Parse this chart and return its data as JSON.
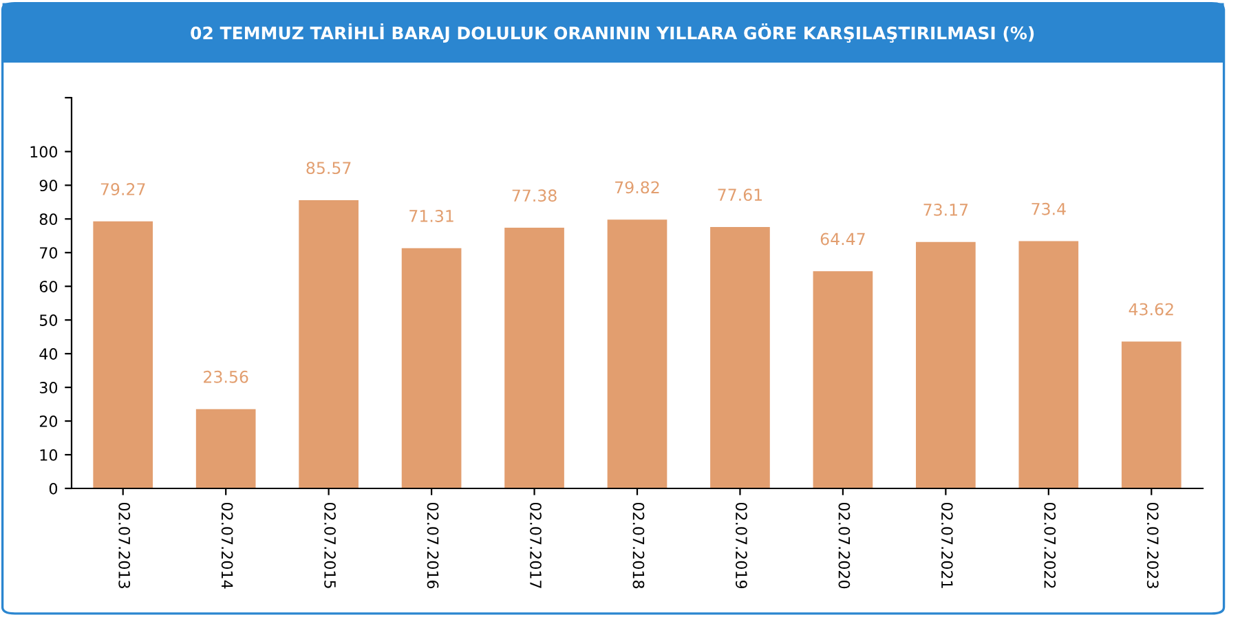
{
  "chart_data": {
    "type": "bar",
    "title": "02 TEMMUZ TARİHLİ BARAJ DOLULUK ORANININ YILLARA GÖRE KARŞILAŞTIRILMASI (%)",
    "categories": [
      "02.07.2013",
      "02.07.2014",
      "02.07.2015",
      "02.07.2016",
      "02.07.2017",
      "02.07.2018",
      "02.07.2019",
      "02.07.2020",
      "02.07.2021",
      "02.07.2022",
      "02.07.2023"
    ],
    "values": [
      79.27,
      23.56,
      85.57,
      71.31,
      77.38,
      79.82,
      77.61,
      64.47,
      73.17,
      73.4,
      43.62
    ],
    "color": "#e29e6f",
    "data_labels": true,
    "ylim": [
      0,
      116
    ],
    "yticks": [
      0,
      10,
      20,
      30,
      40,
      50,
      60,
      70,
      80,
      90,
      100,
      {
        "value": 116,
        "label": null
      }
    ],
    "grid": false,
    "legend": false
  }
}
